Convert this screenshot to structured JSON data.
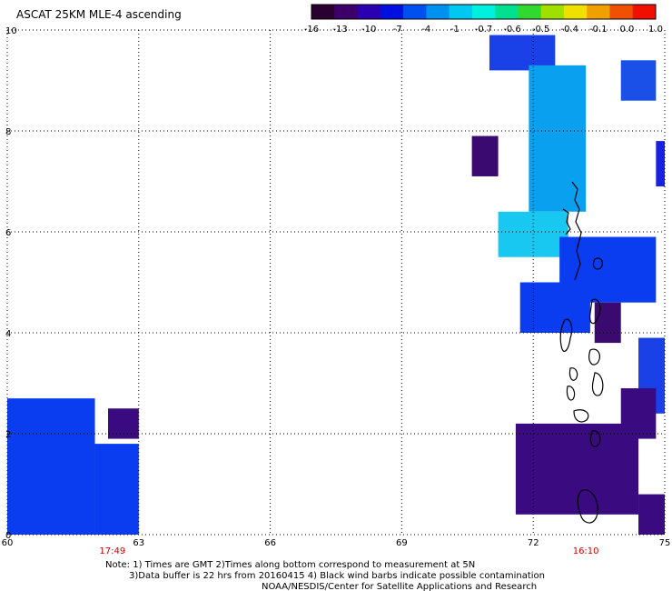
{
  "title": "ASCAT 25KM MLE-4 ascending",
  "colorbar": {
    "colors": [
      "#2a0030",
      "#3d006a",
      "#2a00b0",
      "#0010e0",
      "#0050f0",
      "#0090f0",
      "#00c8f0",
      "#00f0e0",
      "#00e090",
      "#30d830",
      "#a0e000",
      "#f0e000",
      "#f0a000",
      "#f05000",
      "#f01000"
    ],
    "tick_labels": [
      "-16",
      "-13",
      "-10",
      "-7",
      "-4",
      "-1",
      "-0.7",
      "-0.6",
      "-0.5",
      "-0.4",
      "-0.1",
      "0.0",
      "1.0"
    ]
  },
  "axes": {
    "x_ticks": [
      "60",
      "63",
      "66",
      "69",
      "72",
      "75"
    ],
    "y_ticks": [
      "0",
      "2",
      "4",
      "6",
      "8",
      "10"
    ],
    "xlim": [
      60,
      75
    ],
    "ylim": [
      0,
      10
    ],
    "grid": true
  },
  "time_labels": [
    {
      "text": "17:49",
      "lon": 62.4
    },
    {
      "text": "16:10",
      "lon": 73.2
    }
  ],
  "notes": [
    "Note: 1) Times are GMT 2)Times along bottom correspond to measurement at 5N",
    "3)Data buffer is 22 hrs from 20160415 4) Black wind barbs indicate possible contamination",
    "NOAA/NESDIS/Center for Satellite Applications and Research"
  ],
  "regions": [
    {
      "name": "west-swath",
      "color": "#0a3cf0",
      "cells": [
        [
          60,
          0,
          62,
          2.7
        ],
        [
          62,
          0,
          63,
          1.8
        ]
      ]
    },
    {
      "name": "west-dark",
      "color": "#3a0a80",
      "cells": [
        [
          62.3,
          1.9,
          63,
          2.5
        ]
      ]
    },
    {
      "name": "north-blue",
      "color": "#1a40e8",
      "cells": [
        [
          71,
          9.2,
          72.5,
          9.9
        ]
      ]
    },
    {
      "name": "east-patch",
      "color": "#1a50e8",
      "cells": [
        [
          74,
          8.6,
          74.8,
          9.4
        ]
      ]
    },
    {
      "name": "central-cyan",
      "color": "#0aa0f0",
      "cells": [
        [
          71.9,
          6.4,
          73.2,
          9.3
        ]
      ]
    },
    {
      "name": "cyan-light",
      "color": "#18c8f0",
      "cells": [
        [
          71.2,
          5.5,
          72.8,
          6.4
        ]
      ]
    },
    {
      "name": "blue-mid",
      "color": "#0a3cf0",
      "cells": [
        [
          72.6,
          4.6,
          74.8,
          5.9
        ],
        [
          71.7,
          4.0,
          73.3,
          5.0
        ]
      ]
    },
    {
      "name": "purple-spot",
      "color": "#3a0a70",
      "cells": [
        [
          70.6,
          7.1,
          71.2,
          7.9
        ],
        [
          73.4,
          3.8,
          74,
          4.6
        ]
      ]
    },
    {
      "name": "far-east-blue",
      "color": "#1a40e8",
      "cells": [
        [
          74.4,
          2.4,
          75,
          3.9
        ]
      ]
    },
    {
      "name": "far-east-purple",
      "color": "#3a0a80",
      "cells": [
        [
          74,
          1.9,
          74.8,
          2.9
        ]
      ]
    },
    {
      "name": "south-dark",
      "color": "#3a0a80",
      "cells": [
        [
          71.6,
          0.4,
          74.4,
          2.2
        ],
        [
          74.4,
          0,
          75,
          0.8
        ]
      ]
    },
    {
      "name": "east-edge",
      "color": "#1a20e0",
      "cells": [
        [
          74.8,
          6.9,
          75,
          7.8
        ]
      ]
    }
  ]
}
